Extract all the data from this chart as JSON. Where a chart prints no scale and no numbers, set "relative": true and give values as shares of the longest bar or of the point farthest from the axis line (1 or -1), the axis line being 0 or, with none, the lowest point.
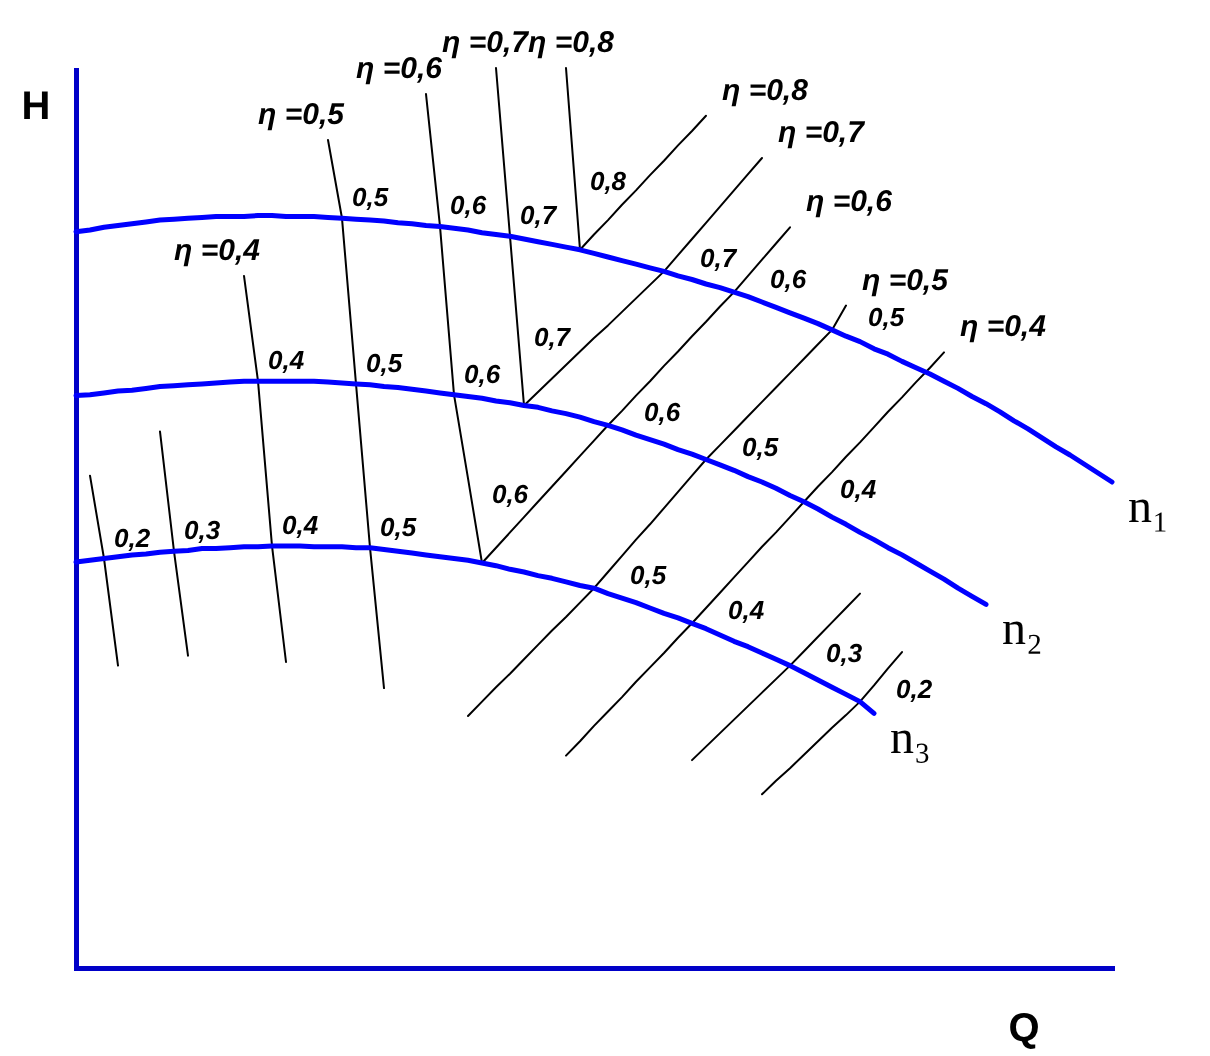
{
  "chart_data": {
    "type": "line",
    "xlabel": "Q",
    "ylabel": "H",
    "relative": true,
    "tick_labels": false,
    "categories": [
      null,
      null,
      null,
      null,
      null,
      null,
      null,
      null,
      null,
      null,
      null,
      null,
      null,
      null,
      null,
      null,
      null,
      null,
      null,
      null,
      null,
      null,
      null,
      null,
      null,
      null,
      null,
      null,
      null,
      null,
      null,
      null,
      null,
      null,
      null,
      null,
      null,
      null,
      null,
      null,
      null,
      null,
      null,
      null,
      null,
      null,
      null,
      null,
      null,
      null,
      null,
      null,
      null,
      null,
      null,
      null,
      null,
      null,
      null,
      null,
      null,
      null,
      null,
      null,
      null,
      null,
      null,
      null,
      null,
      null,
      null,
      null,
      null,
      null,
      null
    ],
    "series": [
      {
        "name": "n₁",
        "color": "#0000ff",
        "values": [
          0.818,
          0.82,
          0.823,
          0.825,
          0.827,
          0.829,
          0.831,
          0.832,
          0.833,
          0.834,
          0.835,
          0.835,
          0.835,
          0.836,
          0.836,
          0.835,
          0.835,
          0.835,
          0.834,
          0.833,
          0.832,
          0.831,
          0.83,
          0.828,
          0.827,
          0.825,
          0.824,
          0.822,
          0.82,
          0.817,
          0.815,
          0.813,
          0.81,
          0.807,
          0.804,
          0.801,
          0.798,
          0.794,
          0.79,
          0.786,
          0.782,
          0.778,
          0.774,
          0.769,
          0.765,
          0.76,
          0.756,
          0.751,
          0.746,
          0.74,
          0.734,
          0.728,
          0.722,
          0.716,
          0.709,
          0.702,
          0.696,
          0.688,
          0.682,
          0.674,
          0.667,
          0.66,
          0.652,
          0.644,
          0.635,
          0.627,
          0.618,
          0.608,
          0.599,
          0.589,
          0.579,
          0.57,
          0.56,
          0.55,
          0.54
        ]
      },
      {
        "name": "n₂",
        "color": "#0000ff",
        "values": [
          0.636,
          0.637,
          0.639,
          0.641,
          0.642,
          0.644,
          0.646,
          0.647,
          0.648,
          0.649,
          0.65,
          0.651,
          0.652,
          0.652,
          0.652,
          0.652,
          0.652,
          0.652,
          0.651,
          0.65,
          0.649,
          0.648,
          0.646,
          0.645,
          0.643,
          0.641,
          0.639,
          0.637,
          0.635,
          0.633,
          0.63,
          0.628,
          0.625,
          0.623,
          0.619,
          0.616,
          0.612,
          0.607,
          0.603,
          0.598,
          0.592,
          0.587,
          0.582,
          0.576,
          0.571,
          0.565,
          0.559,
          0.553,
          0.546,
          0.54,
          0.533,
          0.525,
          0.518,
          0.51,
          0.501,
          0.493,
          0.484,
          0.476,
          0.467,
          0.459,
          0.45,
          0.441,
          0.432,
          0.422,
          0.413,
          0.404,
          null,
          null,
          null,
          null,
          null,
          null,
          null,
          null,
          null
        ]
      },
      {
        "name": "n₃",
        "color": "#0000ff",
        "values": [
          0.451,
          0.453,
          0.455,
          0.457,
          0.459,
          0.46,
          0.462,
          0.463,
          0.464,
          0.466,
          0.466,
          0.467,
          0.468,
          0.468,
          0.469,
          0.469,
          0.469,
          0.468,
          0.468,
          0.468,
          0.467,
          0.467,
          0.465,
          0.463,
          0.461,
          0.459,
          0.457,
          0.455,
          0.453,
          0.45,
          0.447,
          0.443,
          0.44,
          0.436,
          0.433,
          0.429,
          0.425,
          0.422,
          0.416,
          0.411,
          0.406,
          0.4,
          0.394,
          0.389,
          0.383,
          0.377,
          0.37,
          0.363,
          0.357,
          0.35,
          0.343,
          0.336,
          0.328,
          0.32,
          0.312,
          0.304,
          0.296,
          0.283,
          null,
          null,
          null,
          null,
          null,
          null,
          null,
          null,
          null,
          null,
          null,
          null,
          null,
          null,
          null,
          null,
          null
        ]
      },
      {
        "color": "#000000",
        "values": [
          null,
          0.547,
          0.455,
          0.336,
          null,
          null,
          null,
          null,
          null,
          null,
          null,
          null,
          null,
          null,
          null,
          null,
          null,
          null,
          null,
          null,
          null,
          null,
          null,
          null,
          null,
          null,
          null,
          null,
          null,
          null,
          null,
          null,
          null,
          null,
          null,
          null,
          null,
          null,
          null,
          null,
          null,
          null,
          null,
          null,
          null,
          null,
          null,
          null,
          null,
          null,
          null,
          null,
          null,
          null,
          null,
          null,
          null,
          null,
          null,
          null,
          null,
          null,
          null,
          null,
          null,
          null,
          null,
          null,
          null,
          null,
          null,
          null,
          null,
          null,
          null
        ]
      },
      {
        "color": "#000000",
        "values": [
          null,
          null,
          null,
          null,
          null,
          null,
          0.596,
          0.463,
          0.347,
          null,
          null,
          null,
          null,
          null,
          null,
          null,
          null,
          null,
          null,
          null,
          null,
          null,
          null,
          null,
          null,
          null,
          null,
          null,
          null,
          null,
          null,
          null,
          null,
          null,
          null,
          null,
          null,
          null,
          null,
          null,
          null,
          null,
          null,
          null,
          null,
          null,
          null,
          null,
          null,
          null,
          null,
          null,
          null,
          null,
          null,
          null,
          null,
          null,
          null,
          null,
          null,
          null,
          null,
          null,
          null,
          null,
          null,
          null,
          null,
          null,
          null,
          null,
          null,
          null,
          null
        ]
      },
      {
        "name": "η =0,4",
        "color": "#000000",
        "values": [
          null,
          null,
          null,
          null,
          null,
          null,
          null,
          null,
          null,
          null,
          null,
          null,
          0.769,
          0.652,
          0.469,
          0.34,
          null,
          null,
          null,
          null,
          null,
          null,
          null,
          null,
          null,
          null,
          null,
          null,
          null,
          null,
          null,
          null,
          null,
          null,
          null,
          null,
          null,
          null,
          null,
          null,
          null,
          null,
          null,
          null,
          null,
          null,
          null,
          null,
          null,
          null,
          null,
          null,
          null,
          null,
          null,
          null,
          null,
          null,
          null,
          null,
          null,
          null,
          null,
          null,
          null,
          null,
          null,
          null,
          null,
          null,
          null,
          null,
          null,
          null,
          null
        ]
      },
      {
        "name": "η =0,5",
        "color": "#000000",
        "values": [
          null,
          null,
          null,
          null,
          null,
          null,
          null,
          null,
          null,
          null,
          null,
          null,
          null,
          null,
          null,
          null,
          null,
          null,
          0.92,
          0.833,
          0.649,
          0.467,
          0.311,
          null,
          null,
          null,
          null,
          null,
          null,
          null,
          null,
          null,
          null,
          null,
          null,
          null,
          null,
          null,
          null,
          null,
          null,
          null,
          null,
          null,
          null,
          null,
          null,
          null,
          null,
          null,
          null,
          null,
          null,
          null,
          null,
          null,
          null,
          null,
          null,
          null,
          null,
          null,
          null,
          null,
          null,
          null,
          null,
          null,
          null,
          null,
          null,
          null,
          null,
          null,
          null
        ]
      },
      {
        "name": "η =0,6",
        "color": "#000000",
        "values": [
          null,
          null,
          null,
          null,
          null,
          null,
          null,
          null,
          null,
          null,
          null,
          null,
          null,
          null,
          null,
          null,
          null,
          null,
          null,
          null,
          null,
          null,
          null,
          null,
          null,
          0.971,
          0.824,
          0.637,
          0.544,
          0.45,
          null,
          null,
          null,
          null,
          null,
          null,
          null,
          null,
          null,
          null,
          null,
          null,
          null,
          null,
          null,
          null,
          null,
          null,
          null,
          null,
          null,
          null,
          null,
          null,
          null,
          null,
          null,
          null,
          null,
          null,
          null,
          null,
          null,
          null,
          null,
          null,
          null,
          null,
          null,
          null,
          null,
          null,
          null,
          null,
          null
        ]
      },
      {
        "name": "η =0,7",
        "color": "#000000",
        "values": [
          null,
          null,
          null,
          null,
          null,
          null,
          null,
          null,
          null,
          null,
          null,
          null,
          null,
          null,
          null,
          null,
          null,
          null,
          null,
          null,
          null,
          null,
          null,
          null,
          null,
          null,
          null,
          null,
          null,
          null,
          1,
          0.813,
          0.625,
          null,
          null,
          null,
          null,
          null,
          null,
          null,
          null,
          null,
          null,
          null,
          null,
          null,
          null,
          null,
          null,
          null,
          null,
          null,
          null,
          null,
          null,
          null,
          null,
          null,
          null,
          null,
          null,
          null,
          null,
          null,
          null,
          null,
          null,
          null,
          null,
          null,
          null,
          null,
          null,
          null,
          null
        ]
      },
      {
        "name": "η =0,8",
        "color": "#000000",
        "values": [
          null,
          null,
          null,
          null,
          null,
          null,
          null,
          null,
          null,
          null,
          null,
          null,
          null,
          null,
          null,
          null,
          null,
          null,
          null,
          null,
          null,
          null,
          null,
          null,
          null,
          null,
          null,
          null,
          null,
          null,
          null,
          null,
          null,
          null,
          null,
          1,
          0.798,
          null,
          null,
          null,
          null,
          null,
          null,
          null,
          null,
          null,
          null,
          null,
          null,
          null,
          null,
          null,
          null,
          null,
          null,
          null,
          null,
          null,
          null,
          null,
          null,
          null,
          null,
          null,
          null,
          null,
          null,
          null,
          null,
          null,
          null,
          null,
          null,
          null,
          null
        ]
      },
      {
        "name": "η =0,8",
        "color": "#000000",
        "values": [
          null,
          null,
          null,
          null,
          null,
          null,
          null,
          null,
          null,
          null,
          null,
          null,
          null,
          null,
          null,
          null,
          null,
          null,
          null,
          null,
          null,
          null,
          null,
          null,
          null,
          null,
          null,
          null,
          null,
          null,
          null,
          null,
          null,
          null,
          null,
          null,
          0.798,
          0.815,
          0.831,
          0.848,
          0.864,
          0.881,
          0.897,
          0.914,
          0.93,
          0.947,
          null,
          null,
          null,
          null,
          null,
          null,
          null,
          null,
          null,
          null,
          null,
          null,
          null,
          null,
          null,
          null,
          null,
          null,
          null,
          null,
          null,
          null,
          null,
          null,
          null,
          null,
          null,
          null,
          null
        ]
      },
      {
        "name": "η =0,7",
        "color": "#000000",
        "values": [
          null,
          null,
          null,
          null,
          null,
          null,
          null,
          null,
          null,
          null,
          null,
          null,
          null,
          null,
          null,
          null,
          null,
          null,
          null,
          null,
          null,
          null,
          null,
          null,
          null,
          null,
          null,
          null,
          null,
          null,
          null,
          null,
          0.625,
          0.64,
          0.655,
          0.67,
          0.685,
          0.7,
          0.714,
          0.729,
          0.744,
          0.759,
          0.774,
          0.792,
          0.81,
          0.828,
          0.846,
          0.864,
          0.882,
          0.9,
          null,
          null,
          null,
          null,
          null,
          null,
          null,
          null,
          null,
          null,
          null,
          null,
          null,
          null,
          null,
          null,
          null,
          null,
          null,
          null,
          null,
          null,
          null,
          null,
          null
        ]
      },
      {
        "name": "η =0,6",
        "color": "#000000",
        "values": [
          null,
          null,
          null,
          null,
          null,
          null,
          null,
          null,
          null,
          null,
          null,
          null,
          null,
          null,
          null,
          null,
          null,
          null,
          null,
          null,
          null,
          null,
          null,
          null,
          null,
          null,
          null,
          null,
          null,
          0.45,
          0.467,
          0.484,
          0.501,
          0.518,
          0.535,
          0.552,
          0.569,
          0.586,
          0.603,
          0.619,
          0.636,
          0.652,
          0.669,
          0.685,
          0.702,
          0.718,
          0.735,
          0.751,
          0.769,
          0.787,
          0.805,
          0.823,
          null,
          null,
          null,
          null,
          null,
          null,
          null,
          null,
          null,
          null,
          null,
          null,
          null,
          null,
          null,
          null,
          null,
          null,
          null,
          null,
          null,
          null,
          null
        ]
      },
      {
        "name": "η =0,5",
        "color": "#000000",
        "values": [
          null,
          null,
          null,
          null,
          null,
          null,
          null,
          null,
          null,
          null,
          null,
          null,
          null,
          null,
          null,
          null,
          null,
          null,
          null,
          null,
          null,
          null,
          null,
          null,
          null,
          null,
          null,
          null,
          0.28,
          0.296,
          0.312,
          0.327,
          0.343,
          0.359,
          0.375,
          0.39,
          0.406,
          0.422,
          0.44,
          0.458,
          0.476,
          0.493,
          0.511,
          0.529,
          0.547,
          0.565,
          0.581,
          0.597,
          0.613,
          0.629,
          0.645,
          0.661,
          0.677,
          0.693,
          0.709,
          0.736,
          null,
          null,
          null,
          null,
          null,
          null,
          null,
          null,
          null,
          null,
          null,
          null,
          null,
          null,
          null,
          null,
          null,
          null,
          null
        ]
      },
      {
        "name": "η =0,4",
        "color": "#000000",
        "values": [
          null,
          null,
          null,
          null,
          null,
          null,
          null,
          null,
          null,
          null,
          null,
          null,
          null,
          null,
          null,
          null,
          null,
          null,
          null,
          null,
          null,
          null,
          null,
          null,
          null,
          null,
          null,
          null,
          null,
          null,
          null,
          null,
          null,
          null,
          null,
          0.236,
          0.252,
          0.269,
          0.285,
          0.301,
          0.318,
          0.334,
          0.35,
          0.367,
          0.383,
          0.4,
          0.417,
          0.434,
          0.451,
          0.468,
          0.484,
          0.501,
          0.518,
          0.535,
          0.551,
          0.568,
          0.584,
          0.601,
          0.618,
          0.634,
          0.651,
          0.667,
          0.684,
          null,
          null,
          null,
          null,
          null,
          null,
          null,
          null,
          null,
          null,
          null,
          null
        ]
      },
      {
        "color": "#000000",
        "values": [
          null,
          null,
          null,
          null,
          null,
          null,
          null,
          null,
          null,
          null,
          null,
          null,
          null,
          null,
          null,
          null,
          null,
          null,
          null,
          null,
          null,
          null,
          null,
          null,
          null,
          null,
          null,
          null,
          null,
          null,
          null,
          null,
          null,
          null,
          null,
          null,
          null,
          null,
          null,
          null,
          null,
          null,
          null,
          null,
          0.231,
          0.246,
          0.261,
          0.276,
          0.291,
          0.306,
          0.321,
          0.336,
          0.352,
          0.368,
          0.384,
          0.4,
          0.416,
          null,
          null,
          null,
          null,
          null,
          null,
          null,
          null,
          null,
          null,
          null,
          null,
          null,
          null,
          null,
          null,
          null,
          null
        ]
      },
      {
        "color": "#000000",
        "values": [
          null,
          null,
          null,
          null,
          null,
          null,
          null,
          null,
          null,
          null,
          null,
          null,
          null,
          null,
          null,
          null,
          null,
          null,
          null,
          null,
          null,
          null,
          null,
          null,
          null,
          null,
          null,
          null,
          null,
          null,
          null,
          null,
          null,
          null,
          null,
          null,
          null,
          null,
          null,
          null,
          null,
          null,
          null,
          null,
          null,
          null,
          null,
          null,
          null,
          0.193,
          0.208,
          0.222,
          0.237,
          0.252,
          0.267,
          0.281,
          0.296,
          0.314,
          0.333,
          0.351,
          null,
          null,
          null,
          null,
          null,
          null,
          null,
          null,
          null,
          null,
          null,
          null,
          null,
          null,
          null
        ]
      }
    ],
    "annotations": [
      "0,5",
      "0,6",
      "0,7",
      "0,8",
      "0,7",
      "0,6",
      "0,5",
      "0,4",
      "0,5",
      "0,6",
      "0,7",
      "0,6",
      "0,5",
      "0,4",
      "0,2",
      "0,3",
      "0,4",
      "0,5",
      "0,6",
      "0,5",
      "0,4",
      "0,3",
      "0,2"
    ]
  }
}
